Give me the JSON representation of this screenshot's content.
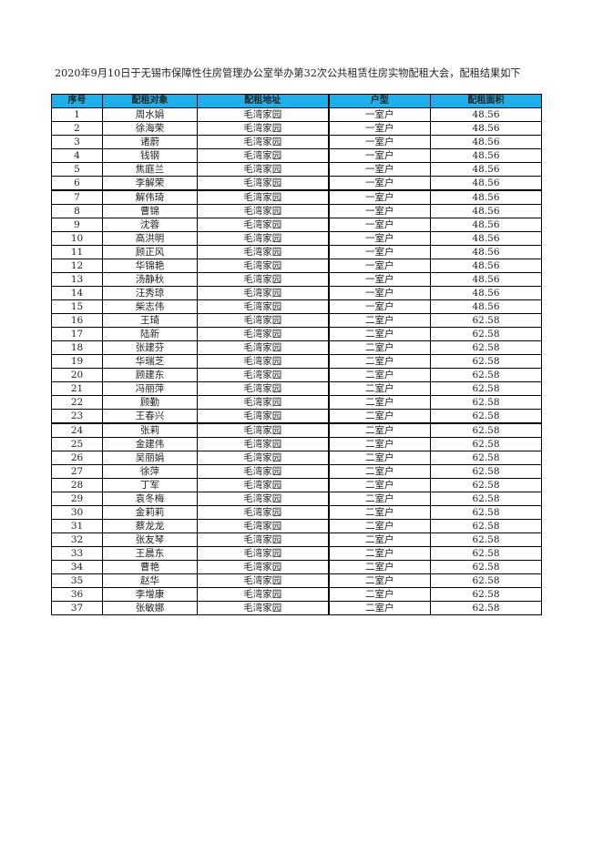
{
  "title": "2020年9月10日于无锡市保障性住房管理办公室举办第32次公共租赁住房实物配租大会，配租结果如下",
  "table": {
    "header_color": "#1fb0ea",
    "columns": [
      "序号",
      "配租对象",
      "配租地址",
      "户型",
      "配租面积"
    ],
    "rows": [
      [
        "1",
        "周水娟",
        "毛湾家园",
        "一室户",
        "48.56"
      ],
      [
        "2",
        "徐海荣",
        "毛湾家园",
        "一室户",
        "48.56"
      ],
      [
        "3",
        "诸蔚",
        "毛湾家园",
        "一室户",
        "48.56"
      ],
      [
        "4",
        "钱钢",
        "毛湾家园",
        "一室户",
        "48.56"
      ],
      [
        "5",
        "焦庭兰",
        "毛湾家园",
        "一室户",
        "48.56"
      ],
      [
        "6",
        "李解荣",
        "毛湾家园",
        "一室户",
        "48.56"
      ],
      [
        "7",
        "解伟琦",
        "毛湾家园",
        "一室户",
        "48.56"
      ],
      [
        "8",
        "曹锦",
        "毛湾家园",
        "一室户",
        "48.56"
      ],
      [
        "9",
        "沈蓉",
        "毛湾家园",
        "一室户",
        "48.56"
      ],
      [
        "10",
        "高洪明",
        "毛湾家园",
        "一室户",
        "48.56"
      ],
      [
        "11",
        "顾正风",
        "毛湾家园",
        "一室户",
        "48.56"
      ],
      [
        "12",
        "华锦艳",
        "毛湾家园",
        "一室户",
        "48.56"
      ],
      [
        "13",
        "汤静秋",
        "毛湾家园",
        "一室户",
        "48.56"
      ],
      [
        "14",
        "汪秀琼",
        "毛湾家园",
        "一室户",
        "48.56"
      ],
      [
        "15",
        "柴志伟",
        "毛湾家园",
        "一室户",
        "48.56"
      ],
      [
        "16",
        "王琦",
        "毛湾家园",
        "二室户",
        "62.58"
      ],
      [
        "17",
        "陆新",
        "毛湾家园",
        "二室户",
        "62.58"
      ],
      [
        "18",
        "张建芬",
        "毛湾家园",
        "二室户",
        "62.58"
      ],
      [
        "19",
        "华瑞芝",
        "毛湾家园",
        "二室户",
        "62.58"
      ],
      [
        "20",
        "顾建东",
        "毛湾家园",
        "二室户",
        "62.58"
      ],
      [
        "21",
        "冯丽萍",
        "毛湾家园",
        "二室户",
        "62.58"
      ],
      [
        "22",
        "顾勤",
        "毛湾家园",
        "二室户",
        "62.58"
      ],
      [
        "23",
        "王春兴",
        "毛湾家园",
        "二室户",
        "62.58"
      ],
      [
        "24",
        "张莉",
        "毛湾家园",
        "二室户",
        "62.58"
      ],
      [
        "25",
        "金建伟",
        "毛湾家园",
        "二室户",
        "62.58"
      ],
      [
        "26",
        "吴丽娟",
        "毛湾家园",
        "二室户",
        "62.58"
      ],
      [
        "27",
        "徐萍",
        "毛湾家园",
        "二室户",
        "62.58"
      ],
      [
        "28",
        "丁军",
        "毛湾家园",
        "二室户",
        "62.58"
      ],
      [
        "29",
        "袁冬梅",
        "毛湾家园",
        "二室户",
        "62.58"
      ],
      [
        "30",
        "金莉莉",
        "毛湾家园",
        "二室户",
        "62.58"
      ],
      [
        "31",
        "蔡龙龙",
        "毛湾家园",
        "二室户",
        "62.58"
      ],
      [
        "32",
        "张友琴",
        "毛湾家园",
        "二室户",
        "62.58"
      ],
      [
        "33",
        "王晨东",
        "毛湾家园",
        "二室户",
        "62.58"
      ],
      [
        "34",
        "曹艳",
        "毛湾家园",
        "二室户",
        "62.58"
      ],
      [
        "35",
        "赵华",
        "毛湾家园",
        "二室户",
        "62.58"
      ],
      [
        "36",
        "李增康",
        "毛湾家园",
        "二室户",
        "62.58"
      ],
      [
        "37",
        "张敏娜",
        "毛湾家园",
        "二室户",
        "62.58"
      ]
    ]
  }
}
